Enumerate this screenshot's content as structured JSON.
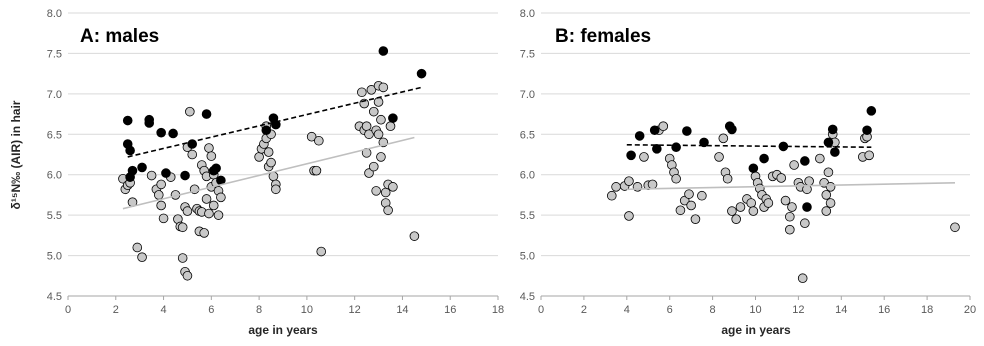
{
  "colors": {
    "grey_marker": "#c8c8c8",
    "black_marker": "#000000",
    "grey_trend": "#bfbfbf",
    "black_trend": "#000000",
    "gridline": "#d9d9d9",
    "frame": "#bfbfbf"
  },
  "chart_data": [
    {
      "type": "scatter",
      "title": "A: males",
      "xlabel": "age in years",
      "ylabel": "δ¹⁵N‰ (AIR) in hair",
      "xlim": [
        0,
        18
      ],
      "ylim": [
        4.5,
        8.0
      ],
      "xticks": [
        "0",
        "2",
        "4",
        "6",
        "8",
        "10",
        "12",
        "14",
        "16",
        "18"
      ],
      "yticks": [
        "4.5",
        "5.0",
        "5.5",
        "6.0",
        "6.5",
        "7.0",
        "7.5",
        "8.0"
      ],
      "grid": "horizontal",
      "series": [
        {
          "marker": "grey-circle",
          "points": [
            [
              2.3,
              5.95
            ],
            [
              2.4,
              5.82
            ],
            [
              2.5,
              5.87
            ],
            [
              2.6,
              5.9
            ],
            [
              2.7,
              5.66
            ],
            [
              2.9,
              5.1
            ],
            [
              3.1,
              4.98
            ],
            [
              3.5,
              5.99
            ],
            [
              3.7,
              5.82
            ],
            [
              3.8,
              5.75
            ],
            [
              3.9,
              5.88
            ],
            [
              3.9,
              5.62
            ],
            [
              4.0,
              5.46
            ],
            [
              4.3,
              5.97
            ],
            [
              4.5,
              5.75
            ],
            [
              4.6,
              5.45
            ],
            [
              4.7,
              5.36
            ],
            [
              4.8,
              5.35
            ],
            [
              4.8,
              4.97
            ],
            [
              4.9,
              4.8
            ],
            [
              5.0,
              4.75
            ],
            [
              4.9,
              5.6
            ],
            [
              5.0,
              5.55
            ],
            [
              5.0,
              6.34
            ],
            [
              5.1,
              6.78
            ],
            [
              5.2,
              6.25
            ],
            [
              5.3,
              5.82
            ],
            [
              5.4,
              5.58
            ],
            [
              5.5,
              5.3
            ],
            [
              5.5,
              5.55
            ],
            [
              5.6,
              5.54
            ],
            [
              5.6,
              6.12
            ],
            [
              5.7,
              6.05
            ],
            [
              5.7,
              5.28
            ],
            [
              5.8,
              5.7
            ],
            [
              5.8,
              5.98
            ],
            [
              5.9,
              6.33
            ],
            [
              5.9,
              5.52
            ],
            [
              6.0,
              6.23
            ],
            [
              6.0,
              5.85
            ],
            [
              6.1,
              5.62
            ],
            [
              6.1,
              6.0
            ],
            [
              6.2,
              5.9
            ],
            [
              6.3,
              5.8
            ],
            [
              6.3,
              5.5
            ],
            [
              6.4,
              5.72
            ],
            [
              8.0,
              6.22
            ],
            [
              8.1,
              6.32
            ],
            [
              8.2,
              6.38
            ],
            [
              8.3,
              6.45
            ],
            [
              8.3,
              6.6
            ],
            [
              8.4,
              6.28
            ],
            [
              8.4,
              6.1
            ],
            [
              8.5,
              6.5
            ],
            [
              8.5,
              6.15
            ],
            [
              8.6,
              5.98
            ],
            [
              8.7,
              5.88
            ],
            [
              8.7,
              5.82
            ],
            [
              10.2,
              6.47
            ],
            [
              10.3,
              6.05
            ],
            [
              10.4,
              6.05
            ],
            [
              10.5,
              6.42
            ],
            [
              10.6,
              5.05
            ],
            [
              12.2,
              6.6
            ],
            [
              12.3,
              7.02
            ],
            [
              12.4,
              6.88
            ],
            [
              12.4,
              6.55
            ],
            [
              12.5,
              6.6
            ],
            [
              12.5,
              6.27
            ],
            [
              12.6,
              6.5
            ],
            [
              12.6,
              6.02
            ],
            [
              12.7,
              7.05
            ],
            [
              12.8,
              6.78
            ],
            [
              12.8,
              6.1
            ],
            [
              12.9,
              6.55
            ],
            [
              12.9,
              5.8
            ],
            [
              13.0,
              7.1
            ],
            [
              13.0,
              6.9
            ],
            [
              13.0,
              6.5
            ],
            [
              13.1,
              6.22
            ],
            [
              13.1,
              6.68
            ],
            [
              13.2,
              7.08
            ],
            [
              13.2,
              6.4
            ],
            [
              13.3,
              5.78
            ],
            [
              13.3,
              5.65
            ],
            [
              13.4,
              5.88
            ],
            [
              13.4,
              5.56
            ],
            [
              13.5,
              6.6
            ],
            [
              13.6,
              5.85
            ],
            [
              14.5,
              5.24
            ]
          ]
        },
        {
          "marker": "black-circle",
          "points": [
            [
              2.5,
              6.67
            ],
            [
              2.5,
              6.38
            ],
            [
              2.6,
              6.3
            ],
            [
              2.6,
              5.97
            ],
            [
              2.7,
              6.05
            ],
            [
              3.1,
              6.09
            ],
            [
              3.4,
              6.68
            ],
            [
              3.4,
              6.64
            ],
            [
              3.9,
              6.52
            ],
            [
              4.1,
              6.02
            ],
            [
              4.4,
              6.51
            ],
            [
              4.9,
              5.99
            ],
            [
              5.2,
              6.38
            ],
            [
              5.8,
              6.75
            ],
            [
              6.1,
              6.05
            ],
            [
              6.2,
              6.08
            ],
            [
              6.4,
              5.93
            ],
            [
              8.3,
              6.55
            ],
            [
              8.6,
              6.7
            ],
            [
              8.7,
              6.62
            ],
            [
              13.2,
              7.53
            ],
            [
              13.6,
              6.7
            ],
            [
              14.8,
              7.25
            ]
          ]
        }
      ],
      "trendlines": [
        {
          "style": "dashed",
          "color": "black",
          "x": [
            2.5,
            14.8
          ],
          "y": [
            6.22,
            7.08
          ]
        },
        {
          "style": "solid",
          "color": "grey",
          "x": [
            2.3,
            14.5
          ],
          "y": [
            5.58,
            6.46
          ]
        }
      ]
    },
    {
      "type": "scatter",
      "title": "B: females",
      "xlabel": "age in years",
      "ylabel": "",
      "xlim": [
        0,
        20
      ],
      "ylim": [
        4.5,
        8.0
      ],
      "xticks": [
        "0",
        "2",
        "4",
        "6",
        "8",
        "10",
        "12",
        "14",
        "16",
        "18",
        "20"
      ],
      "yticks": [
        "4.5",
        "5.0",
        "5.5",
        "6.0",
        "6.5",
        "7.0",
        "7.5",
        "8.0"
      ],
      "grid": "horizontal",
      "series": [
        {
          "marker": "grey-circle",
          "points": [
            [
              3.3,
              5.74
            ],
            [
              3.5,
              5.85
            ],
            [
              3.9,
              5.86
            ],
            [
              4.1,
              5.92
            ],
            [
              4.1,
              5.49
            ],
            [
              4.5,
              5.85
            ],
            [
              4.8,
              6.22
            ],
            [
              5.0,
              5.87
            ],
            [
              5.2,
              5.88
            ],
            [
              5.5,
              6.55
            ],
            [
              5.7,
              6.6
            ],
            [
              6.0,
              6.2
            ],
            [
              6.1,
              6.12
            ],
            [
              6.2,
              6.03
            ],
            [
              6.3,
              5.95
            ],
            [
              6.5,
              5.56
            ],
            [
              6.7,
              5.68
            ],
            [
              6.9,
              5.76
            ],
            [
              7.0,
              5.62
            ],
            [
              7.2,
              5.45
            ],
            [
              7.5,
              5.74
            ],
            [
              8.3,
              6.22
            ],
            [
              8.5,
              6.45
            ],
            [
              8.6,
              6.03
            ],
            [
              8.7,
              5.95
            ],
            [
              8.9,
              5.55
            ],
            [
              9.1,
              5.45
            ],
            [
              9.3,
              5.6
            ],
            [
              9.6,
              5.7
            ],
            [
              9.8,
              5.65
            ],
            [
              9.9,
              5.55
            ],
            [
              10.0,
              5.98
            ],
            [
              10.1,
              5.9
            ],
            [
              10.2,
              5.83
            ],
            [
              10.3,
              5.75
            ],
            [
              10.4,
              5.6
            ],
            [
              10.5,
              5.7
            ],
            [
              10.6,
              5.65
            ],
            [
              10.8,
              5.98
            ],
            [
              11.0,
              6.0
            ],
            [
              11.2,
              5.96
            ],
            [
              11.4,
              5.68
            ],
            [
              11.6,
              5.48
            ],
            [
              11.6,
              5.32
            ],
            [
              11.7,
              5.6
            ],
            [
              11.8,
              6.12
            ],
            [
              12.0,
              5.9
            ],
            [
              12.1,
              5.85
            ],
            [
              12.2,
              4.72
            ],
            [
              12.3,
              5.4
            ],
            [
              12.4,
              5.82
            ],
            [
              12.5,
              5.92
            ],
            [
              13.0,
              6.2
            ],
            [
              13.2,
              5.9
            ],
            [
              13.3,
              5.75
            ],
            [
              13.3,
              5.55
            ],
            [
              13.4,
              6.03
            ],
            [
              13.5,
              5.85
            ],
            [
              13.5,
              5.65
            ],
            [
              13.6,
              6.5
            ],
            [
              13.7,
              6.4
            ],
            [
              15.0,
              6.22
            ],
            [
              15.1,
              6.45
            ],
            [
              15.2,
              6.47
            ],
            [
              15.3,
              6.24
            ],
            [
              19.3,
              5.35
            ]
          ]
        },
        {
          "marker": "black-circle",
          "points": [
            [
              4.2,
              6.24
            ],
            [
              4.6,
              6.48
            ],
            [
              5.3,
              6.55
            ],
            [
              5.4,
              6.32
            ],
            [
              6.3,
              6.34
            ],
            [
              6.8,
              6.54
            ],
            [
              7.6,
              6.4
            ],
            [
              8.8,
              6.6
            ],
            [
              8.9,
              6.56
            ],
            [
              9.9,
              6.08
            ],
            [
              10.4,
              6.2
            ],
            [
              11.3,
              6.35
            ],
            [
              12.3,
              6.17
            ],
            [
              12.4,
              5.6
            ],
            [
              13.4,
              6.4
            ],
            [
              13.6,
              6.56
            ],
            [
              13.7,
              6.28
            ],
            [
              15.2,
              6.55
            ],
            [
              15.4,
              6.79
            ]
          ]
        }
      ],
      "trendlines": [
        {
          "style": "dashed",
          "color": "black",
          "x": [
            4.0,
            15.4
          ],
          "y": [
            6.37,
            6.34
          ]
        },
        {
          "style": "solid",
          "color": "grey",
          "x": [
            4.0,
            19.3
          ],
          "y": [
            5.82,
            5.9
          ]
        }
      ]
    }
  ]
}
